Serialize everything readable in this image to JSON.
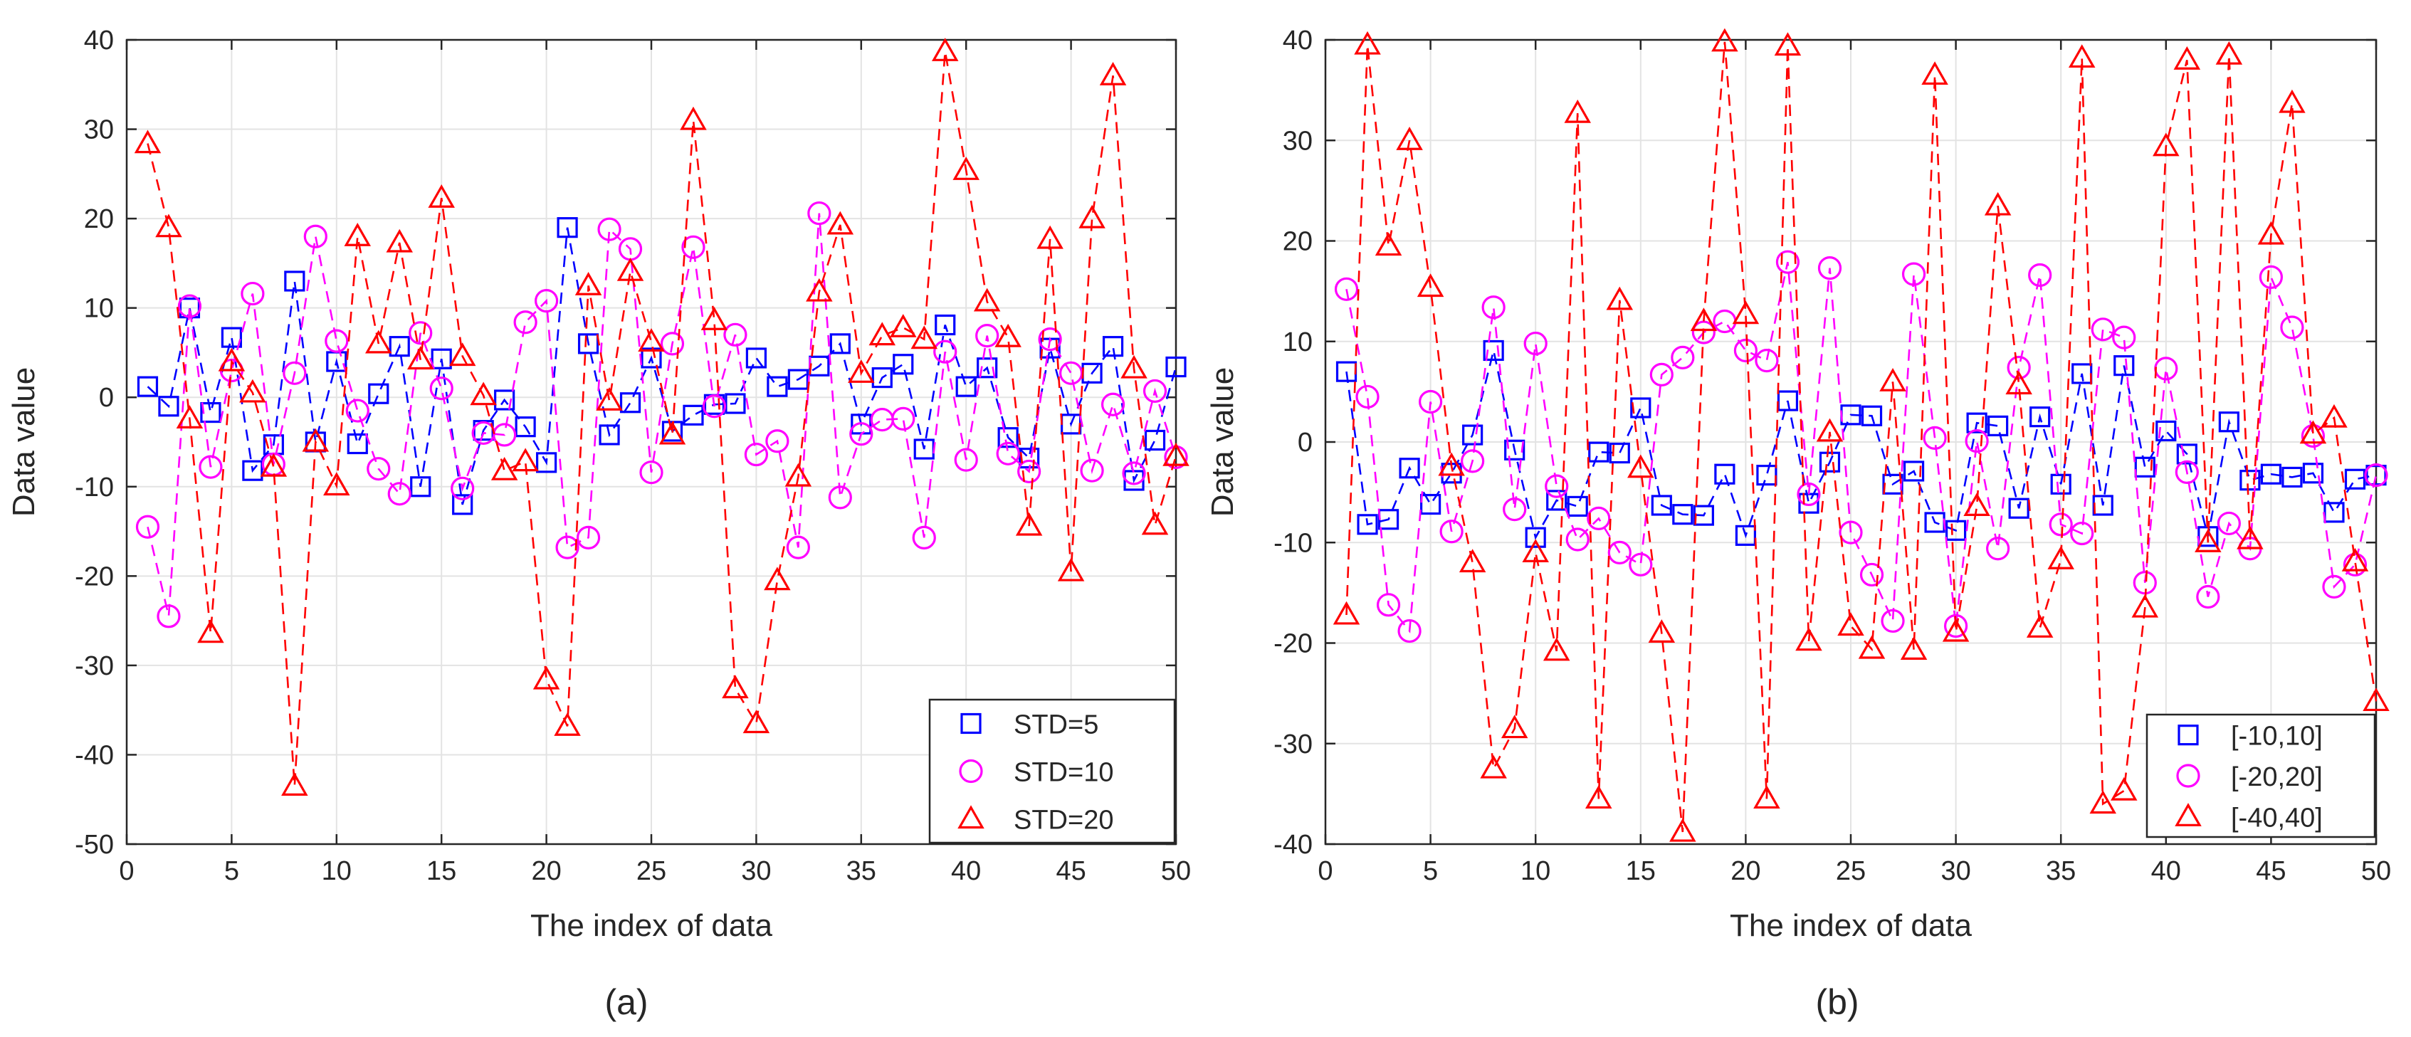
{
  "figure": {
    "background": "#ffffff"
  },
  "chart_data": [
    {
      "type": "line",
      "panel_label": "(a)",
      "title": "",
      "xlabel": "The index of data",
      "ylabel": "Data value",
      "xlim": [
        0,
        50
      ],
      "ylim": [
        -50,
        40
      ],
      "xticks": [
        0,
        5,
        10,
        15,
        20,
        25,
        30,
        35,
        40,
        45,
        50
      ],
      "yticks": [
        -50,
        -40,
        -30,
        -20,
        -10,
        0,
        10,
        20,
        30,
        40
      ],
      "grid": true,
      "legend_position": "bottom-right",
      "x": [
        1,
        2,
        3,
        4,
        5,
        6,
        7,
        8,
        9,
        10,
        11,
        12,
        13,
        14,
        15,
        16,
        17,
        18,
        19,
        20,
        21,
        22,
        23,
        24,
        25,
        26,
        27,
        28,
        29,
        30,
        31,
        32,
        33,
        34,
        35,
        36,
        37,
        38,
        39,
        40,
        41,
        42,
        43,
        44,
        45,
        46,
        47,
        48,
        49,
        50
      ],
      "series": [
        {
          "name": "STD=5",
          "color": "#0000ff",
          "marker": "square",
          "values": [
            1.2,
            -1,
            10,
            -1.7,
            6.7,
            -8.2,
            -5.3,
            13,
            -5,
            4,
            -5.2,
            0.4,
            5.7,
            -10,
            4.3,
            -12,
            -3.7,
            -0.3,
            -3.3,
            -7.3,
            19,
            6,
            -4.2,
            -0.6,
            4.4,
            -3.8,
            -2,
            -0.8,
            -0.7,
            4.4,
            1.2,
            2,
            3.5,
            6,
            -3,
            2.2,
            3.7,
            -5.8,
            8.1,
            1.2,
            3.3,
            -4.5,
            -6.8,
            5.5,
            -3,
            2.7,
            5.7,
            -9.3,
            -4.8,
            3.4
          ]
        },
        {
          "name": "STD=10",
          "color": "#ff00ff",
          "marker": "circle",
          "values": [
            -14.5,
            -24.5,
            10.2,
            -7.8,
            3,
            11.6,
            -7.5,
            2.7,
            18,
            6.3,
            -1.5,
            -8,
            -10.8,
            7.2,
            1,
            -10.2,
            -4,
            -4.2,
            8.4,
            10.8,
            -16.8,
            -15.7,
            18.8,
            16.6,
            -8.4,
            6,
            16.8,
            -1,
            7,
            -6.4,
            -4.9,
            -16.8,
            20.6,
            -11.2,
            -4.1,
            -2.5,
            -2.4,
            -15.7,
            5.1,
            -7,
            6.9,
            -6.3,
            -8.3,
            6.5,
            2.7,
            -8.2,
            -0.8,
            -8.5,
            0.7,
            -6.7
          ]
        },
        {
          "name": "STD=20",
          "color": "#ff0000",
          "marker": "triangle",
          "values": [
            28.4,
            19,
            -2.4,
            -26.4,
            4,
            0.5,
            -7.8,
            -43.5,
            -5,
            -9.9,
            18,
            6,
            17.3,
            4.2,
            22.3,
            4.6,
            0.2,
            -8.2,
            -7.2,
            -31.6,
            -36.8,
            12.5,
            -0.4,
            14.1,
            6.2,
            -4.2,
            31,
            8.6,
            -32.6,
            -36.5,
            -20.5,
            -8.9,
            11.8,
            19.3,
            2.7,
            6.9,
            7.8,
            6.5,
            38.7,
            25.4,
            10.7,
            6.7,
            -14.4,
            17.7,
            -19.5,
            20,
            36,
            3.2,
            -14.3,
            -6.6
          ]
        }
      ]
    },
    {
      "type": "line",
      "panel_label": "(b)",
      "title": "",
      "xlabel": "The index of data",
      "ylabel": "Data value",
      "xlim": [
        0,
        50
      ],
      "ylim": [
        -40,
        40
      ],
      "xticks": [
        0,
        5,
        10,
        15,
        20,
        25,
        30,
        35,
        40,
        45,
        50
      ],
      "yticks": [
        -40,
        -30,
        -20,
        -10,
        0,
        10,
        20,
        30,
        40
      ],
      "grid": true,
      "legend_position": "bottom-right",
      "x": [
        1,
        2,
        3,
        4,
        5,
        6,
        7,
        8,
        9,
        10,
        11,
        12,
        13,
        14,
        15,
        16,
        17,
        18,
        19,
        20,
        21,
        22,
        23,
        24,
        25,
        26,
        27,
        28,
        29,
        30,
        31,
        32,
        33,
        34,
        35,
        36,
        37,
        38,
        39,
        40,
        41,
        42,
        43,
        44,
        45,
        46,
        47,
        48,
        49,
        50
      ],
      "series": [
        {
          "name": "[-10,10]",
          "color": "#0000ff",
          "marker": "square",
          "values": [
            7,
            -8.2,
            -7.7,
            -2.6,
            -6.2,
            -3.1,
            0.7,
            9.1,
            -0.8,
            -9.5,
            -5.8,
            -6.4,
            -1,
            -1.1,
            3.4,
            -6.3,
            -7.2,
            -7.3,
            -3.2,
            -9.3,
            -3.3,
            4.1,
            -6.1,
            -2,
            2.7,
            2.6,
            -4.2,
            -2.9,
            -8,
            -8.8,
            1.9,
            1.6,
            -6.6,
            2.5,
            -4.2,
            6.8,
            -6.3,
            7.6,
            -2.5,
            1.1,
            -1.2,
            -9.4,
            2,
            -3.8,
            -3.2,
            -3.5,
            -3.1,
            -7,
            -3.7,
            -3.3
          ]
        },
        {
          "name": "[-20,20]",
          "color": "#ff00ff",
          "marker": "circle",
          "values": [
            15.2,
            4.5,
            -16.2,
            -18.8,
            4,
            -8.9,
            -1.9,
            13.4,
            -6.7,
            9.8,
            -4.4,
            -9.7,
            -7.6,
            -11,
            -12.2,
            6.7,
            8.4,
            10.9,
            12,
            9.1,
            8.1,
            17.9,
            -5.2,
            17.3,
            -9,
            -13.2,
            -17.8,
            16.7,
            0.4,
            -18.3,
            0.1,
            -10.6,
            7.4,
            16.6,
            -8.2,
            -9.1,
            11.2,
            10.4,
            -14,
            7.3,
            -3,
            -15.4,
            -8.1,
            -10.6,
            16.4,
            11.4,
            0.6,
            -14.4,
            -12.2,
            -3.3
          ]
        },
        {
          "name": "[-40,40]",
          "color": "#ff0000",
          "marker": "triangle",
          "values": [
            -17.2,
            39.5,
            19.5,
            30,
            15.4,
            -2.4,
            -12,
            -32.5,
            -28.5,
            -11,
            -20.8,
            32.7,
            -35.5,
            14.1,
            -2.6,
            -19,
            -38.8,
            12,
            39.8,
            12.7,
            -35.5,
            39.4,
            -19.8,
            1,
            -18.3,
            -20.6,
            6,
            -20.7,
            36.5,
            -18.9,
            -6.4,
            23.5,
            5.7,
            -18.5,
            -11.7,
            38.2,
            -36,
            -34.7,
            -16.5,
            29.4,
            38,
            -10,
            38.5,
            -9.7,
            20.6,
            33.7,
            0.8,
            2.4,
            -11.9,
            -25.8
          ]
        }
      ]
    }
  ]
}
